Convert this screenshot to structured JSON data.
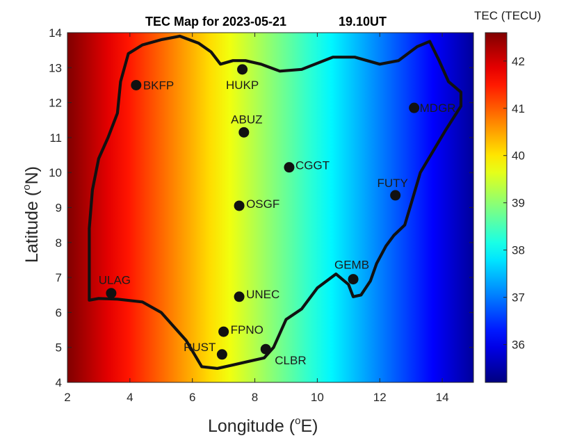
{
  "chart_data": {
    "type": "heatmap",
    "title": "TEC Map for 2023-05-21",
    "time_label": "19.10UT",
    "xlabel": "Longitude (",
    "xlabel_sup": "o",
    "xlabel_end": "E)",
    "ylabel": "Latitude (",
    "ylabel_sup": "o",
    "ylabel_end": "N)",
    "xlim": [
      2,
      15
    ],
    "ylim": [
      4,
      14
    ],
    "x_ticks": [
      2,
      4,
      6,
      8,
      10,
      12,
      14
    ],
    "y_ticks": [
      4,
      5,
      6,
      7,
      8,
      9,
      10,
      11,
      12,
      13,
      14
    ],
    "colorbar": {
      "title": "TEC (TECU)",
      "colormap": "jet",
      "range": [
        35.2,
        42.6
      ],
      "ticks": [
        36,
        37,
        38,
        39,
        40,
        41,
        42
      ]
    },
    "field_description_tec_at_lon": {
      "lon": [
        2,
        15
      ],
      "tec": [
        42.6,
        35.4
      ]
    },
    "stations": [
      {
        "name": "BKFP",
        "lon": 4.2,
        "lat": 12.5
      },
      {
        "name": "HUKP",
        "lon": 7.6,
        "lat": 12.95
      },
      {
        "name": "MDGR",
        "lon": 13.1,
        "lat": 11.85
      },
      {
        "name": "ABUZ",
        "lon": 7.65,
        "lat": 11.15
      },
      {
        "name": "CGGT",
        "lon": 9.1,
        "lat": 10.15
      },
      {
        "name": "FUTY",
        "lon": 12.5,
        "lat": 9.35
      },
      {
        "name": "OSGF",
        "lon": 7.5,
        "lat": 9.05
      },
      {
        "name": "GEMB",
        "lon": 11.15,
        "lat": 6.95
      },
      {
        "name": "ULAG",
        "lon": 3.4,
        "lat": 6.55
      },
      {
        "name": "UNEC",
        "lon": 7.5,
        "lat": 6.45
      },
      {
        "name": "FPNO",
        "lon": 7.0,
        "lat": 5.45
      },
      {
        "name": "RUST",
        "lon": 6.95,
        "lat": 4.8
      },
      {
        "name": "CLBR",
        "lon": 8.35,
        "lat": 4.95
      }
    ],
    "boundary": [
      [
        2.7,
        6.35
      ],
      [
        3.0,
        6.4
      ],
      [
        3.6,
        6.38
      ],
      [
        4.4,
        6.3
      ],
      [
        5.0,
        6.0
      ],
      [
        5.4,
        5.6
      ],
      [
        5.8,
        5.2
      ],
      [
        6.3,
        4.45
      ],
      [
        6.8,
        4.4
      ],
      [
        7.3,
        4.5
      ],
      [
        7.8,
        4.6
      ],
      [
        8.3,
        4.7
      ],
      [
        8.6,
        5.0
      ],
      [
        9.0,
        5.8
      ],
      [
        9.5,
        6.1
      ],
      [
        10.0,
        6.7
      ],
      [
        10.6,
        7.1
      ],
      [
        11.0,
        6.8
      ],
      [
        11.15,
        6.45
      ],
      [
        11.4,
        6.5
      ],
      [
        11.7,
        6.9
      ],
      [
        11.9,
        7.4
      ],
      [
        12.2,
        7.9
      ],
      [
        12.45,
        8.2
      ],
      [
        12.8,
        8.5
      ],
      [
        13.0,
        9.1
      ],
      [
        13.3,
        10.0
      ],
      [
        13.7,
        10.6
      ],
      [
        14.1,
        11.2
      ],
      [
        14.6,
        11.9
      ],
      [
        14.6,
        12.3
      ],
      [
        14.2,
        12.6
      ],
      [
        13.9,
        13.2
      ],
      [
        13.6,
        13.75
      ],
      [
        13.2,
        13.6
      ],
      [
        12.6,
        13.2
      ],
      [
        12.0,
        13.1
      ],
      [
        11.2,
        13.3
      ],
      [
        10.5,
        13.3
      ],
      [
        9.5,
        12.95
      ],
      [
        8.8,
        12.9
      ],
      [
        8.2,
        13.1
      ],
      [
        7.7,
        13.2
      ],
      [
        7.3,
        13.2
      ],
      [
        6.9,
        13.1
      ],
      [
        6.6,
        13.45
      ],
      [
        6.2,
        13.7
      ],
      [
        5.6,
        13.9
      ],
      [
        5.0,
        13.8
      ],
      [
        4.4,
        13.65
      ],
      [
        3.95,
        13.4
      ],
      [
        3.7,
        12.6
      ],
      [
        3.6,
        11.7
      ],
      [
        3.3,
        11.0
      ],
      [
        3.0,
        10.4
      ],
      [
        2.8,
        9.5
      ],
      [
        2.7,
        8.4
      ],
      [
        2.7,
        7.2
      ],
      [
        2.7,
        6.35
      ]
    ]
  }
}
